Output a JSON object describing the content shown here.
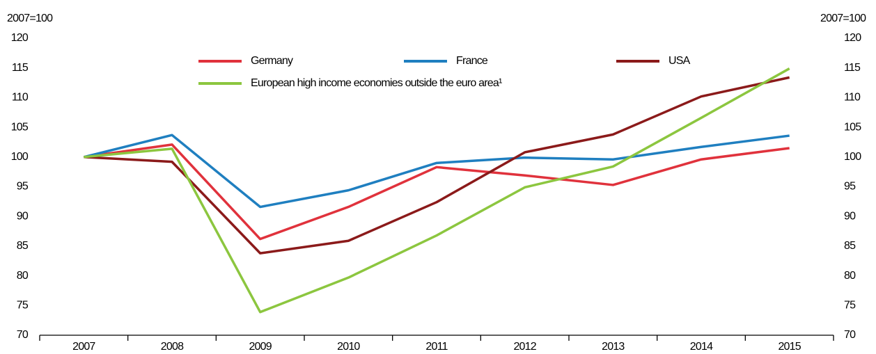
{
  "chart_data": {
    "type": "line",
    "y_label": "2007=100",
    "y2_label": "2007=100",
    "categories": [
      "2007",
      "2008",
      "2009",
      "2010",
      "2011",
      "2012",
      "2013",
      "2014",
      "2015"
    ],
    "series": [
      {
        "name": "Germany",
        "color": "#e0323c",
        "values": [
          100,
          102.1,
          86.2,
          91.6,
          98.3,
          96.9,
          95.3,
          99.6,
          101.5
        ]
      },
      {
        "name": "France",
        "color": "#1f7fc0",
        "values": [
          100,
          103.7,
          91.6,
          94.4,
          99.0,
          99.9,
          99.6,
          101.7,
          103.6
        ]
      },
      {
        "name": "USA",
        "color": "#8b1a1a",
        "values": [
          100,
          99.2,
          83.8,
          85.9,
          92.4,
          100.8,
          103.8,
          110.2,
          113.4
        ]
      },
      {
        "name": "European high income economies outside the euro area¹",
        "color": "#8cc63f",
        "values": [
          100,
          101.4,
          73.9,
          79.7,
          86.8,
          94.9,
          98.4,
          106.6,
          114.9
        ]
      }
    ],
    "ylim": [
      70,
      120
    ],
    "yticks": [
      70,
      75,
      80,
      85,
      90,
      95,
      100,
      105,
      110,
      115,
      120
    ],
    "y2lim": [
      70,
      120
    ],
    "y2ticks": [
      70,
      75,
      80,
      85,
      90,
      95,
      100,
      105,
      110,
      115,
      120
    ],
    "grid": false
  }
}
